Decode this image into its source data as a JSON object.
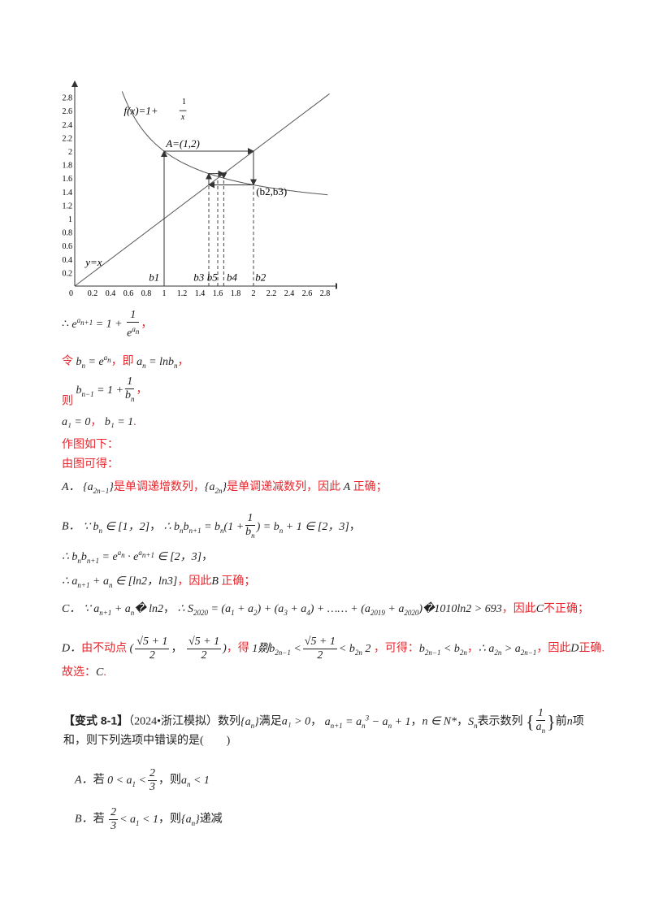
{
  "figure": {
    "x_ticks": [
      "0.2",
      "0.4",
      "0.6",
      "0.8",
      "1",
      "1.2",
      "1.4",
      "1.6",
      "1.8",
      "2",
      "2.2",
      "2.4",
      "2.6",
      "2.8"
    ],
    "y_ticks": [
      "0.2",
      "0.4",
      "0.6",
      "0.8",
      "1",
      "1.2",
      "1.4",
      "1.6",
      "1.8",
      "2",
      "2.2",
      "2.4",
      "2.6",
      "2.8"
    ],
    "origin": "0",
    "curve_label": "f(x)=1+",
    "curve_frac_num": "1",
    "curve_frac_den": "x",
    "line_label": "y=x",
    "point_A": "A=(1,2)",
    "point_b2b3": "(b2,b3)",
    "b_labels": {
      "b1": "b1",
      "b2": "b2",
      "b3": "b3",
      "b4": "b4",
      "b5": "b5"
    }
  },
  "lines": {
    "l1": {
      "pre": "∴",
      "lhs": "e",
      "lhs_sup": "a_{n+1}",
      "eq": "= 1 +",
      "num": "1",
      "den": "e^{a_n}",
      "end": "，"
    },
    "l2": {
      "t1": "令",
      "m1": "b_n = e^{a_n}",
      "t2": "，即",
      "m2": "a_n = lnb_n",
      "t3": "，"
    },
    "l3": {
      "t1": "则",
      "m1": "b_{n-1} = 1 +",
      "num": "1",
      "den": "b_n",
      "t2": "，"
    },
    "l4": {
      "m1": "a₁ = 0",
      "t1": "，",
      "m2": "b₁ = 1",
      "t2": "."
    },
    "l5": "作图如下：",
    "l6": "由图可得：",
    "optA": {
      "label": "A．",
      "m1": "{a_{2n-1}}",
      "t1": "是单调递增数列，",
      "m2": "{a_{2n}}",
      "t2": "是单调递减数列，因此",
      "m3": "A",
      "t3": "正确；"
    },
    "optB1": {
      "label": "B．",
      "m1": "∵ b_n ∈ [1，2]",
      "t1": "，",
      "m2": "∴ b_n b_{n+1} = b_n(1 +",
      "num": "1",
      "den": "b_n",
      "m3": ") = b_n + 1 ∈ [2，3]",
      "t2": "，"
    },
    "optB2": {
      "m1": "∴ b_n b_{n+1} = e^{a_n} · e^{a_{n+1}} ∈ [2，3]",
      "t1": "，"
    },
    "optB3": {
      "m1": "∴ a_{n+1} + a_n ∈ [ln2，ln3]",
      "t1": "，因此",
      "m2": "B",
      "t2": "正确；"
    },
    "optC": {
      "label": "C．",
      "m1": "∵ a_{n+1} + a_n� ln2",
      "t1": "，",
      "m2": "∴ S₂₀₂₀ = (a₁ + a₂) + (a₃ + a₄) + …… + (a₂₀₁₉ + a₂₀₂₀)�1010ln2 > 693",
      "t2": "，因此",
      "m3": "C",
      "t3": "不正确；"
    },
    "optD": {
      "label": "D．",
      "t1": "由不动点",
      "m1": "(",
      "num1": "√5 + 1",
      "den1": "2",
      "sep": "，",
      "num2": "√5 + 1",
      "den2": "2",
      "m2": ")",
      "t2": "，得",
      "m3": "1剟b_{2n-1} <",
      "num3": "√5 + 1",
      "den3": "2",
      "m4": "< b_{2n}  2",
      "t3": "，可得：",
      "m5": "b_{2n-1} < b_{2n}",
      "t4": "，",
      "m6": "∴ a_{2n} > a_{2n-1}",
      "t5": "，因此",
      "m7": "D",
      "t6": "正确."
    },
    "answer": {
      "t1": "故选：",
      "m1": "C",
      "t2": "."
    }
  },
  "problem": {
    "tag": "【变式 8-1】",
    "source": "（2024•浙江模拟）数列",
    "m1": "{a_n}",
    "t1": "满足",
    "m2": "a₁ > 0",
    "t2": "，",
    "m3": "a_{n+1} = a_n³ − a_n + 1",
    "t3": "，",
    "m4": "n ∈ N*",
    "t4": "，",
    "m5": "S_n",
    "t5": "表示数列",
    "num": "1",
    "den": "a_n",
    "t6": "前",
    "m6": "n",
    "t7": "项",
    "line2": "和，则下列选项中错误的是",
    "paren": "(　　)",
    "optA": {
      "label": "A．",
      "t1": "若",
      "m1": "0 < a₁ <",
      "num": "2",
      "den": "3",
      "t2": "，则",
      "m2": "a_n < 1"
    },
    "optB": {
      "label": "B．",
      "t1": "若",
      "num": "2",
      "den": "3",
      "m1": "< a₁ < 1",
      "t2": "，则",
      "m2": "{a_n}",
      "t3": "递减"
    }
  },
  "colors": {
    "answer_text": "#e8262d",
    "body_text": "#222222"
  }
}
